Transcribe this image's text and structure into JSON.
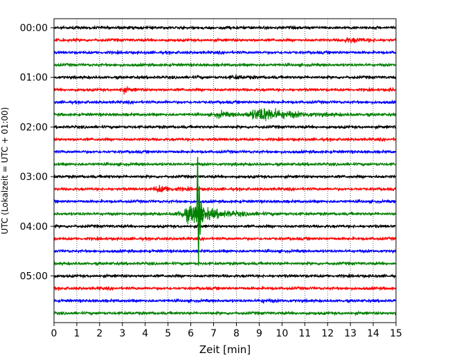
{
  "chart_data": {
    "type": "line",
    "title": "",
    "xlabel": "Zeit  [min]",
    "ylabel": "UTC (Lokalzeit = UTC + 01:00)",
    "xlim": [
      0,
      15
    ],
    "x_ticks": [
      0,
      1,
      2,
      3,
      4,
      5,
      6,
      7,
      8,
      9,
      10,
      11,
      12,
      13,
      14,
      15
    ],
    "x_tick_labels": [
      "0",
      "1",
      "2",
      "3",
      "4",
      "5",
      "6",
      "7",
      "8",
      "9",
      "10",
      "11",
      "12",
      "13",
      "14",
      "15"
    ],
    "y_tick_labels": [
      "00:00",
      "01:00",
      "02:00",
      "03:00",
      "04:00",
      "05:00"
    ],
    "grid": "vertical dotted lines at each minute",
    "trace_interval_minutes": 15,
    "trace_colors": [
      "#000000",
      "#ff0000",
      "#0000ff",
      "#008000"
    ],
    "traces": [
      {
        "start": "00:00",
        "color": "#000000",
        "events": [
          {
            "t": 7.4,
            "amp": 1.4,
            "width": 0.15
          }
        ]
      },
      {
        "start": "00:15",
        "color": "#ff0000",
        "events": [
          {
            "t": 13.0,
            "amp": 2.0,
            "width": 0.6
          }
        ]
      },
      {
        "start": "00:30",
        "color": "#0000ff",
        "events": []
      },
      {
        "start": "00:45",
        "color": "#008000",
        "events": []
      },
      {
        "start": "01:00",
        "color": "#000000",
        "events": [
          {
            "t": 8.0,
            "amp": 1.6,
            "width": 0.5
          },
          {
            "t": 6.3,
            "amp": 2.0,
            "width": 0.05
          }
        ]
      },
      {
        "start": "01:15",
        "color": "#ff0000",
        "events": [
          {
            "t": 3.05,
            "amp": 2.3,
            "width": 0.25
          },
          {
            "t": 14.8,
            "amp": 1.6,
            "width": 0.15
          }
        ]
      },
      {
        "start": "01:30",
        "color": "#0000ff",
        "events": [
          {
            "t": 4.9,
            "amp": 1.7,
            "width": 0.05
          }
        ]
      },
      {
        "start": "01:45",
        "color": "#008000",
        "events": [
          {
            "t": 9.2,
            "amp": 5.0,
            "width": 1.0
          },
          {
            "t": 7.3,
            "amp": 2.5,
            "width": 0.4
          }
        ]
      },
      {
        "start": "02:00",
        "color": "#000000",
        "events": []
      },
      {
        "start": "02:15",
        "color": "#ff0000",
        "events": []
      },
      {
        "start": "02:30",
        "color": "#0000ff",
        "events": []
      },
      {
        "start": "02:45",
        "color": "#008000",
        "events": []
      },
      {
        "start": "03:00",
        "color": "#000000",
        "events": [
          {
            "t": 2.4,
            "amp": 1.5,
            "width": 0.05
          }
        ]
      },
      {
        "start": "03:15",
        "color": "#ff0000",
        "events": [
          {
            "t": 4.7,
            "amp": 2.6,
            "width": 0.5
          }
        ]
      },
      {
        "start": "03:30",
        "color": "#0000ff",
        "events": []
      },
      {
        "start": "03:45",
        "color": "#008000",
        "events": [
          {
            "t": 6.15,
            "amp": 6.5,
            "width": 0.9
          }
        ]
      },
      {
        "start": "04:00",
        "color": "#000000",
        "events": []
      },
      {
        "start": "04:15",
        "color": "#ff0000",
        "events": []
      },
      {
        "start": "04:30",
        "color": "#0000ff",
        "events": []
      },
      {
        "start": "04:45",
        "color": "#008000",
        "events": []
      },
      {
        "start": "05:00",
        "color": "#000000",
        "events": []
      },
      {
        "start": "05:15",
        "color": "#ff0000",
        "events": [
          {
            "t": 2.0,
            "amp": 1.5,
            "width": 0.05
          }
        ]
      },
      {
        "start": "05:30",
        "color": "#0000ff",
        "events": [
          {
            "t": 9.2,
            "amp": 1.6,
            "width": 0.4
          }
        ]
      },
      {
        "start": "05:45",
        "color": "#008000",
        "events": []
      }
    ],
    "spike": {
      "trace_start": "03:45",
      "t": 6.3,
      "color": "#008000"
    }
  }
}
